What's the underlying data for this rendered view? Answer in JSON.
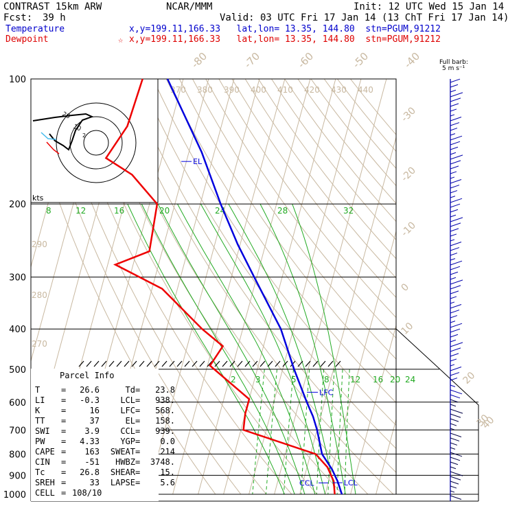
{
  "header": {
    "model": "CONTRAST 15km ARW",
    "org": "NCAR/MMM",
    "init": "Init: 12 UTC Wed 15 Jan 14",
    "fcst_label": "Fcst:",
    "fcst_value": "39 h",
    "valid": "Valid: 03 UTC Fri 17 Jan 14 (13 ChT Fri 17 Jan 14)",
    "temp_label": "Temperature",
    "temp_info": "x,y=199.11,166.33   lat,lon= 13.35, 144.80  stn=PGUM,91212",
    "dew_label": "Dewpoint",
    "dew_info": "x,y=199.11,166.33   lat,lon= 13.35, 144.80  stn=PGUM,91212",
    "star": "☆",
    "barb_title": "Full barb:",
    "barb_unit": "5 m s⁻¹"
  },
  "colors": {
    "temperature": "#0000dd",
    "dewpoint": "#ee0000",
    "isotherm": "#c8b8a0",
    "mixing_ratio": "#22aa22",
    "axis": "#000000"
  },
  "chart_data": {
    "type": "line",
    "pressure_ticks": [
      100,
      200,
      300,
      400,
      500,
      600,
      700,
      800,
      900,
      1000
    ],
    "top_isotherm_labels": [
      "-80",
      "-70",
      "-60",
      "-50",
      "-40"
    ],
    "right_isotherm_labels": [
      "-30",
      "-20",
      "-10",
      "0",
      "10",
      "20",
      "30",
      "40"
    ],
    "theta_labels": [
      "370",
      "380",
      "390",
      "400",
      "410",
      "420",
      "430",
      "440"
    ],
    "theta_left_labels": [
      "290",
      "280",
      "270"
    ],
    "mixing_labels_upper": [
      "8",
      "12",
      "16",
      "20",
      "24",
      "28",
      "32"
    ],
    "mixing_labels_lower": [
      "2",
      "3",
      "5",
      "8",
      "12",
      "16",
      "20",
      "24"
    ],
    "series": [
      {
        "name": "Temperature",
        "points": [
          {
            "p": 100,
            "t": -86.2
          },
          {
            "p": 150,
            "t": -65
          },
          {
            "p": 200,
            "t": -52
          },
          {
            "p": 250,
            "t": -41
          },
          {
            "p": 300,
            "t": -31
          },
          {
            "p": 400,
            "t": -15
          },
          {
            "p": 500,
            "t": -5.5
          },
          {
            "p": 600,
            "t": 3
          },
          {
            "p": 650,
            "t": 7
          },
          {
            "p": 700,
            "t": 10
          },
          {
            "p": 800,
            "t": 14.5
          },
          {
            "p": 870,
            "t": 20
          },
          {
            "p": 930,
            "t": 23.5
          },
          {
            "p": 1000,
            "t": 26.6
          }
        ]
      },
      {
        "name": "Dewpoint",
        "points": [
          {
            "p": 100,
            "t": -96
          },
          {
            "p": 130,
            "t": -97
          },
          {
            "p": 155,
            "t": -102
          },
          {
            "p": 170,
            "t": -90
          },
          {
            "p": 200,
            "t": -77
          },
          {
            "p": 260,
            "t": -75
          },
          {
            "p": 280,
            "t": -87
          },
          {
            "p": 320,
            "t": -66
          },
          {
            "p": 400,
            "t": -46
          },
          {
            "p": 440,
            "t": -36
          },
          {
            "p": 490,
            "t": -39
          },
          {
            "p": 590,
            "t": -20
          },
          {
            "p": 640,
            "t": -20
          },
          {
            "p": 700,
            "t": -19
          },
          {
            "p": 800,
            "t": 12
          },
          {
            "p": 860,
            "t": 18
          },
          {
            "p": 930,
            "t": 22
          },
          {
            "p": 1000,
            "t": 23.8
          }
        ]
      }
    ],
    "annotations": [
      {
        "label": "EL",
        "p": 158
      },
      {
        "label": "LFC",
        "p": 568
      },
      {
        "label": "CCL",
        "p": 939
      },
      {
        "label": "LCL",
        "p": 938
      }
    ]
  },
  "hodograph": {
    "units_label": "kts",
    "ring_labels": [
      "20",
      "10"
    ]
  },
  "parcel": {
    "title": "Parcel Info",
    "rows": [
      {
        "l1": "T",
        "v1": "26.6",
        "l2": "Td",
        "v2": "23.8"
      },
      {
        "l1": "LI",
        "v1": "-0.3",
        "l2": "LCL",
        "v2": "938."
      },
      {
        "l1": "K",
        "v1": "16",
        "l2": "LFC",
        "v2": "568."
      },
      {
        "l1": "TT",
        "v1": "37",
        "l2": "EL",
        "v2": "158."
      },
      {
        "l1": "SWI",
        "v1": "3.9",
        "l2": "CCL",
        "v2": "939."
      },
      {
        "l1": "PW",
        "v1": "4.33",
        "l2": "YGP",
        "v2": "0.0"
      },
      {
        "l1": "CAPE",
        "v1": "163",
        "l2": "SWEAT",
        "v2": "214"
      },
      {
        "l1": "CIN",
        "v1": "-51",
        "l2": "HWBZ",
        "v2": "3748."
      },
      {
        "l1": "Tc",
        "v1": "26.8",
        "l2": "SHEAR",
        "v2": "15."
      },
      {
        "l1": "SREH",
        "v1": "33",
        "l2": "LAPSE",
        "v2": "5.6"
      },
      {
        "l1": "CELL",
        "v1": "108/10",
        "l2": "",
        "v2": ""
      }
    ]
  }
}
